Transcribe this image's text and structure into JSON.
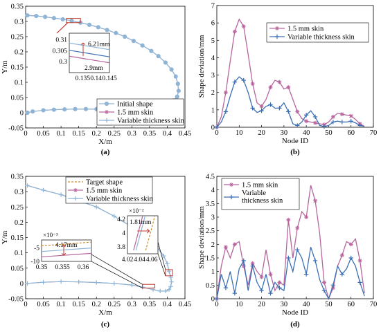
{
  "chart_data": [
    {
      "id": "a",
      "type": "line",
      "caption": "(a)",
      "xlabel": "X/m",
      "ylabel": "Y/m",
      "xlim": [
        0,
        0.45
      ],
      "ylim": [
        -0.05,
        0.35
      ],
      "xticks": [
        0,
        0.05,
        0.1,
        0.15,
        0.2,
        0.25,
        0.3,
        0.35,
        0.4,
        0.45
      ],
      "xtick_labels": [
        "0",
        "0.05",
        "0.1",
        "0.15",
        "0.2",
        "0.25",
        "0.3",
        "0.35",
        "0.4",
        "0.45"
      ],
      "yticks": [
        -0.05,
        0,
        0.05,
        0.1,
        0.15,
        0.2,
        0.25,
        0.3,
        0.35
      ],
      "ytick_labels": [
        "-0.05",
        "0",
        "0.05",
        "0.1",
        "0.15",
        "0.2",
        "0.25",
        "0.3",
        "0.35"
      ],
      "legend": {
        "position": "bottom-right",
        "entries": [
          "Initial shape",
          "1.5 mm skin",
          "Variable thickness skin"
        ]
      },
      "series": [
        {
          "name": "Initial shape",
          "color": "#8fb4d6",
          "marker": "circle",
          "x": [
            0.005,
            0.03,
            0.055,
            0.08,
            0.105,
            0.13,
            0.155,
            0.18,
            0.205,
            0.23,
            0.255,
            0.28,
            0.305,
            0.33,
            0.355,
            0.375,
            0.395,
            0.412,
            0.424,
            0.43,
            0.432,
            0.428,
            0.418,
            0.4,
            0.378,
            0.35,
            0.32,
            0.29,
            0.26,
            0.23,
            0.2,
            0.17,
            0.14,
            0.11,
            0.08,
            0.05,
            0.02,
            0.005
          ],
          "y": [
            0.32,
            0.318,
            0.315,
            0.311,
            0.307,
            0.302,
            0.296,
            0.289,
            0.281,
            0.272,
            0.262,
            0.25,
            0.236,
            0.221,
            0.203,
            0.186,
            0.165,
            0.142,
            0.119,
            0.095,
            0.072,
            0.053,
            0.04,
            0.03,
            0.023,
            0.018,
            0.015,
            0.013,
            0.012,
            0.012,
            0.012,
            0.012,
            0.012,
            0.011,
            0.01,
            0.008,
            0.004,
            0.0
          ]
        }
      ],
      "annotation_box": {
        "x_from": 0.115,
        "x_to": 0.155,
        "y_from": 0.296,
        "y_to": 0.31
      },
      "inset": {
        "xlim": [
          0.13,
          0.145
        ],
        "ylim": [
          0.295,
          0.313
        ],
        "xtick_labels": [
          "0.135",
          "0.14",
          "0.145"
        ],
        "xticks": [
          0.135,
          0.14,
          0.145
        ],
        "ytick_labels": [
          "0.3",
          "0.305",
          "0.31"
        ],
        "yticks": [
          0.3,
          0.305,
          0.31
        ],
        "annotations": [
          "6.21mm",
          "2.9mm"
        ],
        "lines": [
          {
            "name": "Initial shape",
            "x": [
              0.13,
              0.145
            ],
            "y": [
              0.3085,
              0.3055
            ]
          },
          {
            "name": "1.5 mm skin",
            "x": [
              0.13,
              0.145
            ],
            "y": [
              0.3025,
              0.2995
            ]
          },
          {
            "name": "Variable thickness skin",
            "x": [
              0.13,
              0.145
            ],
            "y": [
              0.3052,
              0.3022
            ]
          }
        ]
      }
    },
    {
      "id": "b",
      "type": "line",
      "caption": "(b)",
      "xlabel": "Node ID",
      "ylabel": "Shape deviation/mm",
      "xlim": [
        0,
        70
      ],
      "ylim": [
        0,
        7
      ],
      "xticks": [
        0,
        10,
        20,
        30,
        40,
        50,
        60,
        70
      ],
      "xtick_labels": [
        "0",
        "10",
        "20",
        "30",
        "40",
        "50",
        "60",
        "70"
      ],
      "yticks": [
        0,
        1,
        2,
        3,
        4,
        5,
        6,
        7
      ],
      "ytick_labels": [
        "0",
        "1",
        "2",
        "3",
        "4",
        "5",
        "6",
        "7"
      ],
      "legend": {
        "position": "top-right",
        "entries": [
          "1.5 mm skin",
          "Variable thickness skin"
        ]
      },
      "series": [
        {
          "name": "1.5 mm skin",
          "color": "#b7649d",
          "marker": "asterisk",
          "x": [
            0,
            2,
            4,
            6,
            8,
            10,
            12,
            14,
            16,
            18,
            20,
            22,
            24,
            26,
            28,
            30,
            32,
            34,
            36,
            38,
            40,
            42,
            44,
            46,
            48,
            50,
            52,
            54,
            56,
            58,
            60,
            62,
            64,
            66
          ],
          "y": [
            0,
            0.6,
            2.0,
            3.8,
            5.5,
            6.21,
            5.8,
            4.2,
            2.5,
            1.4,
            1.2,
            1.6,
            2.3,
            2.7,
            2.6,
            2.2,
            2.3,
            1.6,
            0.9,
            0.5,
            0.35,
            0.3,
            0.25,
            0.2,
            0.15,
            0.3,
            0.6,
            0.8,
            0.75,
            0.7,
            0.65,
            0.45,
            0.2,
            0.05
          ]
        },
        {
          "name": "Variable thickness skin",
          "color": "#3a6fb5",
          "marker": "plus",
          "x": [
            0,
            2,
            4,
            6,
            8,
            10,
            12,
            14,
            16,
            18,
            20,
            22,
            24,
            26,
            28,
            30,
            32,
            34,
            36,
            38,
            40,
            42,
            44,
            46,
            48,
            50,
            52,
            54,
            56,
            58,
            60,
            62,
            64,
            66
          ],
          "y": [
            0,
            0.3,
            0.9,
            1.8,
            2.6,
            2.9,
            2.7,
            2.0,
            1.1,
            0.85,
            0.95,
            1.2,
            1.3,
            1.1,
            1.1,
            1.4,
            0.9,
            0.2,
            0.1,
            0.3,
            0.7,
            0.95,
            0.6,
            0.1,
            0.05,
            0.1,
            0.3,
            0.35,
            0.3,
            0.3,
            0.35,
            0.25,
            0.1,
            0.05
          ]
        }
      ]
    },
    {
      "id": "c",
      "type": "line",
      "caption": "(c)",
      "xlabel": "X/m",
      "ylabel": "Y/m",
      "xlim": [
        0,
        0.45
      ],
      "ylim": [
        -0.05,
        0.35
      ],
      "xticks": [
        0,
        0.05,
        0.1,
        0.15,
        0.2,
        0.25,
        0.3,
        0.35,
        0.4,
        0.45
      ],
      "xtick_labels": [
        "0",
        "0.05",
        "0.1",
        "0.15",
        "0.2",
        "0.25",
        "0.3",
        "0.35",
        "0.4",
        "0.45"
      ],
      "yticks": [
        -0.05,
        0,
        0.05,
        0.1,
        0.15,
        0.2,
        0.25,
        0.3,
        0.35
      ],
      "ytick_labels": [
        "-0.05",
        "0",
        "0.05",
        "0.1",
        "0.15",
        "0.2",
        "0.25",
        "0.3",
        "0.35"
      ],
      "legend": {
        "position": "top-center",
        "entries": [
          "Target shape",
          "1.5 mm skin",
          "Variable thickness skin"
        ]
      },
      "series": [
        {
          "name": "Variable thickness skin",
          "color": "#8fb4d6",
          "marker": "plus",
          "x": [
            0.005,
            0.05,
            0.1,
            0.15,
            0.2,
            0.25,
            0.3,
            0.34,
            0.37,
            0.39,
            0.4,
            0.405,
            0.41,
            0.412,
            0.41,
            0.405,
            0.395,
            0.38,
            0.36,
            0.33,
            0.3,
            0.25,
            0.2,
            0.15,
            0.1,
            0.05,
            0.005
          ],
          "y": [
            0.32,
            0.305,
            0.29,
            0.27,
            0.25,
            0.22,
            0.185,
            0.15,
            0.12,
            0.09,
            0.065,
            0.04,
            0.02,
            0.005,
            -0.01,
            -0.02,
            -0.025,
            -0.025,
            -0.02,
            -0.012,
            -0.005,
            0.0,
            0.003,
            0.005,
            0.006,
            0.004,
            0.0
          ]
        }
      ],
      "annotation_boxes": [
        {
          "x_from": 0.33,
          "x_to": 0.365,
          "y_from": -0.015,
          "y_to": -0.003
        },
        {
          "x_from": 0.395,
          "x_to": 0.415,
          "y_from": 0.025,
          "y_to": 0.045
        }
      ],
      "inset_left": {
        "scale_label": "×10⁻³",
        "xlim": [
          0.35,
          0.362
        ],
        "ylim": [
          -10,
          -2
        ],
        "xticks": [
          0.35,
          0.355,
          0.36
        ],
        "xtick_labels": [
          "0.35",
          "0.355",
          "0.36"
        ],
        "yticks": [
          -5,
          -10
        ],
        "ytick_labels": [
          "-5",
          "-10"
        ],
        "annotation": "4.17mm",
        "lines": [
          {
            "name": "Target shape",
            "x": [
              0.35,
              0.362
            ],
            "y": [
              -4.2,
              -2.8
            ]
          },
          {
            "name": "Variable thickness skin",
            "x": [
              0.35,
              0.362
            ],
            "y": [
              -6.3,
              -5.0
            ]
          },
          {
            "name": "1.5 mm skin",
            "x": [
              0.35,
              0.362
            ],
            "y": [
              -8.3,
              -7.0
            ]
          }
        ]
      },
      "inset_right": {
        "scale_label": "×10⁻²",
        "xlim": [
          4.02,
          4.07
        ],
        "ylim": [
          3.7,
          4.25
        ],
        "xticks": [
          4.02,
          4.04,
          4.06
        ],
        "xtick_labels": [
          "4.02",
          "4.04",
          "4.06"
        ],
        "yticks": [
          3.8,
          4,
          4.2
        ],
        "ytick_labels": [
          "3.8",
          "4",
          "4.2"
        ],
        "annotation": "1.81mm",
        "lines": [
          {
            "name": "Target shape",
            "x": [
              4.05,
              4.065
            ],
            "y": [
              3.75,
              4.25
            ]
          },
          {
            "name": "1.5 mm skin",
            "x": [
              4.03,
              4.045
            ],
            "y": [
              3.75,
              4.25
            ]
          },
          {
            "name": "Variable thickness skin",
            "x": [
              4.034,
              4.049
            ],
            "y": [
              3.75,
              4.25
            ]
          }
        ]
      }
    },
    {
      "id": "d",
      "type": "line",
      "caption": "(d)",
      "xlabel": "Node ID",
      "ylabel": "Shape deviation/mm",
      "xlim": [
        0,
        70
      ],
      "ylim": [
        0,
        4.5
      ],
      "xticks": [
        0,
        10,
        20,
        30,
        40,
        50,
        60,
        70
      ],
      "xtick_labels": [
        "0",
        "10",
        "20",
        "30",
        "40",
        "50",
        "60",
        "70"
      ],
      "yticks": [
        0,
        0.5,
        1,
        1.5,
        2,
        2.5,
        3,
        3.5,
        4,
        4.5
      ],
      "ytick_labels": [
        "0",
        "0.5",
        "1",
        "1.5",
        "2",
        "2.5",
        "3",
        "3.5",
        "4",
        "4.5"
      ],
      "legend": {
        "position": "top-left",
        "entries": [
          "1.5 mm skin",
          "Variable\nthickness skin"
        ]
      },
      "series": [
        {
          "name": "1.5 mm skin",
          "color": "#b7649d",
          "marker": "asterisk",
          "x": [
            0,
            2,
            4,
            6,
            8,
            10,
            12,
            14,
            16,
            18,
            20,
            22,
            24,
            26,
            28,
            30,
            32,
            34,
            36,
            38,
            40,
            42,
            44,
            46,
            48,
            50,
            52,
            54,
            56,
            58,
            60,
            62,
            64,
            66
          ],
          "y": [
            0,
            1.2,
            1.9,
            1.5,
            2.0,
            2.1,
            1.2,
            0.5,
            1.3,
            1.0,
            0.8,
            1.8,
            0.9,
            0.3,
            0.6,
            0.5,
            2.9,
            1.5,
            2.6,
            3.2,
            3.0,
            4.17,
            3.6,
            2.4,
            0.6,
            0.0,
            0.4,
            1.2,
            1.6,
            2.1,
            2.0,
            2.2,
            1.4,
            0.2
          ]
        },
        {
          "name": "Variable thickness skin",
          "color": "#3a6fb5",
          "marker": "plus",
          "x": [
            0,
            2,
            4,
            6,
            8,
            10,
            12,
            14,
            16,
            18,
            20,
            22,
            24,
            26,
            28,
            30,
            32,
            34,
            36,
            38,
            40,
            42,
            44,
            46,
            48,
            50,
            52,
            54,
            56,
            58,
            60,
            62,
            64,
            66
          ],
          "y": [
            0,
            0.9,
            0.4,
            1.0,
            0.2,
            1.1,
            1.4,
            0.3,
            1.2,
            0.6,
            0.3,
            0.9,
            0.2,
            0.6,
            0.4,
            0.3,
            1.5,
            1.0,
            1.8,
            1.5,
            0.9,
            1.9,
            1.4,
            0.7,
            0.3,
            0.0,
            0.5,
            1.2,
            0.9,
            1.1,
            1.5,
            1.2,
            0.6,
            0.1
          ]
        }
      ]
    }
  ]
}
